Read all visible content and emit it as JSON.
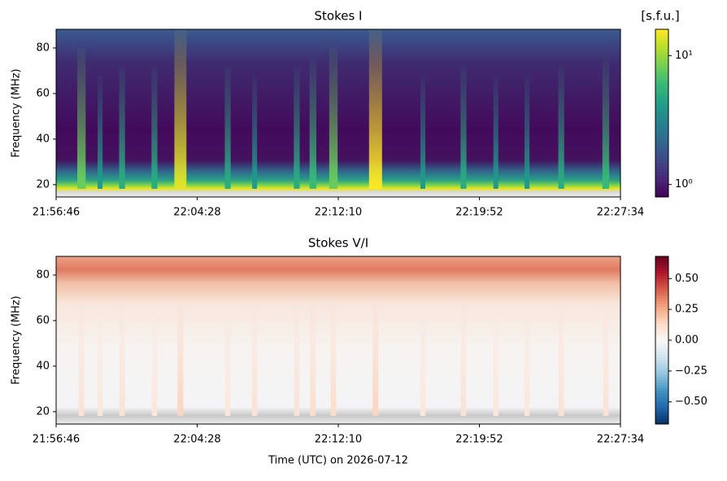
{
  "chart_data": [
    {
      "type": "spectrogram",
      "title": "Stokes I",
      "ylabel": "Frequency (MHz)",
      "xlim": [
        79006,
        80854
      ],
      "xticks": [
        {
          "value": 79006,
          "label": "21:56:46"
        },
        {
          "value": 79468,
          "label": "22:04:28"
        },
        {
          "value": 79930,
          "label": "22:12:10"
        },
        {
          "value": 80392,
          "label": "22:19:52"
        },
        {
          "value": 80854,
          "label": "22:27:34"
        }
      ],
      "ylim": [
        14.6,
        88.2
      ],
      "yticks": [
        20,
        40,
        60,
        80
      ],
      "colorbar": {
        "label": "[s.f.u.]",
        "scale": "log",
        "colormap": "viridis",
        "lim": [
          0.8,
          16
        ],
        "ticks": [
          {
            "value": 1,
            "label": "10⁰"
          },
          {
            "value": 10,
            "label": "10¹"
          }
        ]
      },
      "bursts": {
        "x": [
          79089,
          79150,
          79222,
          79328,
          79413,
          79568,
          79656,
          79794,
          79847,
          79914,
          80052,
          80207,
          80340,
          80446,
          80548,
          80660,
          80806
        ],
        "values": [
          8,
          4,
          5,
          5,
          14,
          5,
          4,
          5,
          6,
          8,
          16,
          4,
          5,
          4,
          4,
          5,
          6
        ]
      }
    },
    {
      "type": "spectrogram",
      "title": "Stokes V/I",
      "ylabel": "Frequency (MHz)",
      "xlabel": "Time (UTC) on 2026-07-12",
      "xlim": [
        79006,
        80854
      ],
      "xticks": [
        {
          "value": 79006,
          "label": "21:56:46"
        },
        {
          "value": 79468,
          "label": "22:04:28"
        },
        {
          "value": 79930,
          "label": "22:12:10"
        },
        {
          "value": 80392,
          "label": "22:19:52"
        },
        {
          "value": 80854,
          "label": "22:27:34"
        }
      ],
      "ylim": [
        14.6,
        88.2
      ],
      "yticks": [
        20,
        40,
        60,
        80
      ],
      "colorbar": {
        "scale": "linear",
        "colormap": "RdBu_r",
        "lim": [
          -0.68,
          0.68
        ],
        "ticks": [
          {
            "value": -0.5,
            "label": "−0.50"
          },
          {
            "value": -0.25,
            "label": "−0.25"
          },
          {
            "value": 0,
            "label": "0.00"
          },
          {
            "value": 0.25,
            "label": "0.25"
          },
          {
            "value": 0.5,
            "label": "0.50"
          }
        ]
      },
      "bursts": {
        "x": [
          79089,
          79150,
          79222,
          79328,
          79413,
          79568,
          79656,
          79794,
          79847,
          79914,
          80052,
          80207,
          80340,
          80446,
          80548,
          80660,
          80806
        ],
        "values": [
          0.1,
          0.08,
          0.1,
          0.08,
          0.15,
          0.08,
          0.1,
          0.1,
          0.12,
          0.12,
          0.15,
          0.08,
          0.1,
          0.08,
          0.08,
          0.1,
          0.1
        ]
      }
    }
  ]
}
